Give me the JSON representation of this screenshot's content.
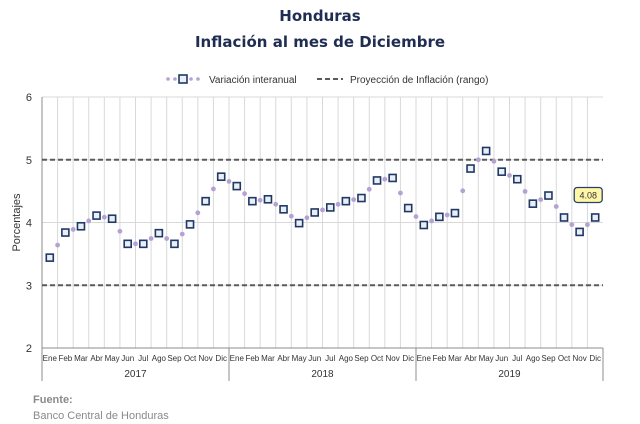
{
  "chart_data": {
    "type": "line",
    "title": "Honduras",
    "subtitle": "Inflación al mes de Diciembre",
    "ylabel": "Porcentajes",
    "ylim": [
      2,
      6
    ],
    "yticks": [
      "2",
      "3",
      "4",
      "5",
      "6"
    ],
    "grid": true,
    "legend_position": "top",
    "x": [
      "Ene",
      "Feb",
      "Mar",
      "Abr",
      "May",
      "Jun",
      "Jul",
      "Ago",
      "Sep",
      "Oct",
      "Nov",
      "Dic",
      "Ene",
      "Feb",
      "Mar",
      "Abr",
      "May",
      "Jun",
      "Jul",
      "Ago",
      "Sep",
      "Oct",
      "Nov",
      "Dic",
      "Ene",
      "Feb",
      "Mar",
      "Abr",
      "May",
      "Jun",
      "Jul",
      "Ago",
      "Sep",
      "Oct",
      "Nov",
      "Dic"
    ],
    "years": [
      {
        "label": "2017",
        "months": 12
      },
      {
        "label": "2018",
        "months": 12
      },
      {
        "label": "2019",
        "months": 12
      }
    ],
    "series": [
      {
        "name": "Variación interanual",
        "color": "#b5a2d4",
        "marker_color": "#1f3864",
        "values": [
          3.44,
          3.84,
          3.94,
          4.11,
          4.06,
          3.66,
          3.66,
          3.83,
          3.66,
          3.97,
          4.34,
          4.73,
          4.58,
          4.34,
          4.37,
          4.21,
          3.99,
          4.16,
          4.24,
          4.34,
          4.39,
          4.67,
          4.71,
          4.23,
          3.96,
          4.09,
          4.15,
          4.86,
          5.14,
          4.81,
          4.69,
          4.3,
          4.43,
          4.08,
          3.85,
          4.08
        ]
      }
    ],
    "reference_lines": [
      {
        "name": "Proyección de Inflación (rango)",
        "values": [
          3,
          5
        ],
        "color": "#5a5a5a"
      }
    ],
    "annotations": [
      {
        "text": "4.08",
        "x_index": 35,
        "y": 4.08
      }
    ]
  },
  "source": {
    "label": "Fuente:",
    "text": "Banco Central de Honduras"
  }
}
